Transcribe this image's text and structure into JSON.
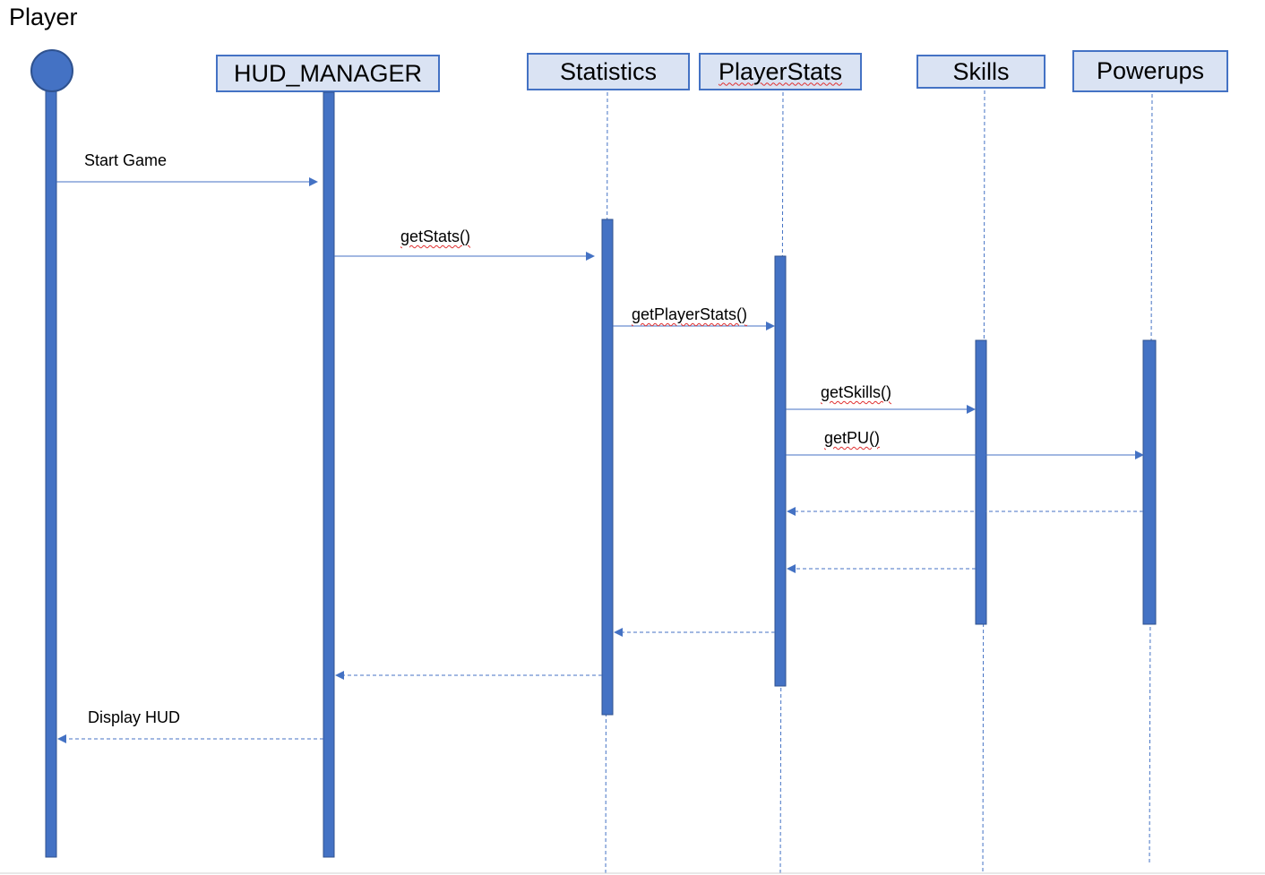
{
  "actor": {
    "label": "Player"
  },
  "participants": [
    {
      "id": "hud",
      "label": "HUD_MANAGER",
      "spellcheck": false
    },
    {
      "id": "stats",
      "label": "Statistics",
      "spellcheck": false
    },
    {
      "id": "pstats",
      "label": "PlayerStats",
      "spellcheck": true
    },
    {
      "id": "skills",
      "label": "Skills",
      "spellcheck": false
    },
    {
      "id": "pu",
      "label": "Powerups",
      "spellcheck": false
    }
  ],
  "messages": [
    {
      "from": "player",
      "to": "hud",
      "label": "Start Game",
      "kind": "call"
    },
    {
      "from": "hud",
      "to": "stats",
      "label": "getStats()",
      "kind": "call"
    },
    {
      "from": "stats",
      "to": "pstats",
      "label": "getPlayerStats()",
      "kind": "call"
    },
    {
      "from": "pstats",
      "to": "skills",
      "label": "getSkills()",
      "kind": "call"
    },
    {
      "from": "pstats",
      "to": "pu",
      "label": "getPU()",
      "kind": "call"
    },
    {
      "from": "pu",
      "to": "pstats",
      "label": "",
      "kind": "return"
    },
    {
      "from": "skills",
      "to": "pstats",
      "label": "",
      "kind": "return"
    },
    {
      "from": "pstats",
      "to": "stats",
      "label": "",
      "kind": "return"
    },
    {
      "from": "stats",
      "to": "hud",
      "label": "",
      "kind": "return"
    },
    {
      "from": "hud",
      "to": "player",
      "label": "Display HUD",
      "kind": "return"
    }
  ],
  "colors": {
    "line": "#4472c4",
    "bar": "#4472c4",
    "bar_border": "#2f528f",
    "box_fill": "#dae3f3",
    "spellcheck": "#e03030"
  }
}
